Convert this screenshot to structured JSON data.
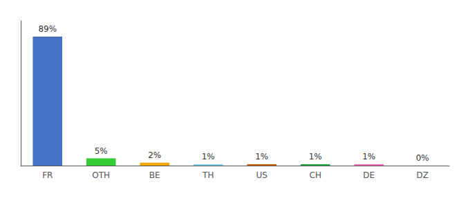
{
  "chart_data": {
    "type": "bar",
    "categories": [
      "FR",
      "OTH",
      "BE",
      "TH",
      "US",
      "CH",
      "DE",
      "DZ"
    ],
    "values": [
      89,
      5,
      2,
      1,
      1,
      1,
      1,
      0
    ],
    "value_labels": [
      "89%",
      "5%",
      "2%",
      "1%",
      "1%",
      "1%",
      "1%",
      "0%"
    ],
    "colors": [
      "#4472c4",
      "#33cc33",
      "#f0a500",
      "#77ccee",
      "#cc6600",
      "#22aa44",
      "#ff69b4",
      "#cccccc"
    ],
    "ylim": [
      0,
      100
    ],
    "grid": false,
    "data_labels": true,
    "tick_labels": "x"
  }
}
